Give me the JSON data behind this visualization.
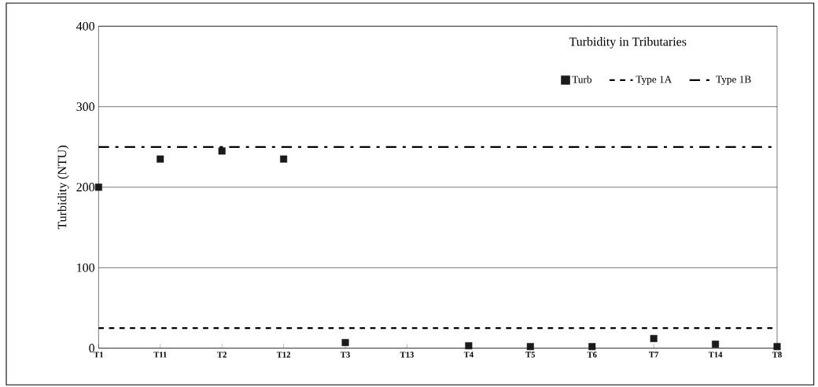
{
  "chart_data": {
    "type": "scatter",
    "title": "Turbidity in Tributaries",
    "ylabel": "Turbidity (NTU)",
    "categories": [
      "T1",
      "T11",
      "T2",
      "T12",
      "T3",
      "T13",
      "T4",
      "T5",
      "T6",
      "T7",
      "T14",
      "T8"
    ],
    "series": [
      {
        "name": "Turb",
        "marker": "square",
        "color": "#1a1a1a",
        "values": [
          200,
          235,
          245,
          235,
          7,
          null,
          3,
          2,
          2,
          12,
          5,
          2
        ]
      },
      {
        "name": "Type 1A",
        "type": "line",
        "marker": "none",
        "line_style": "dashed",
        "color": "#000000",
        "values": [
          25,
          25,
          25,
          25,
          25,
          25,
          25,
          25,
          25,
          25,
          25,
          25
        ]
      },
      {
        "name": "Type 1B",
        "type": "line",
        "marker": "none",
        "line_style": "dashdot",
        "color": "#000000",
        "values": [
          250,
          250,
          250,
          250,
          250,
          250,
          250,
          250,
          250,
          250,
          250,
          250
        ]
      }
    ],
    "ylim": [
      0,
      400
    ],
    "yticks": [
      0,
      100,
      200,
      300,
      400
    ],
    "grid": "y",
    "legend": "top right"
  }
}
